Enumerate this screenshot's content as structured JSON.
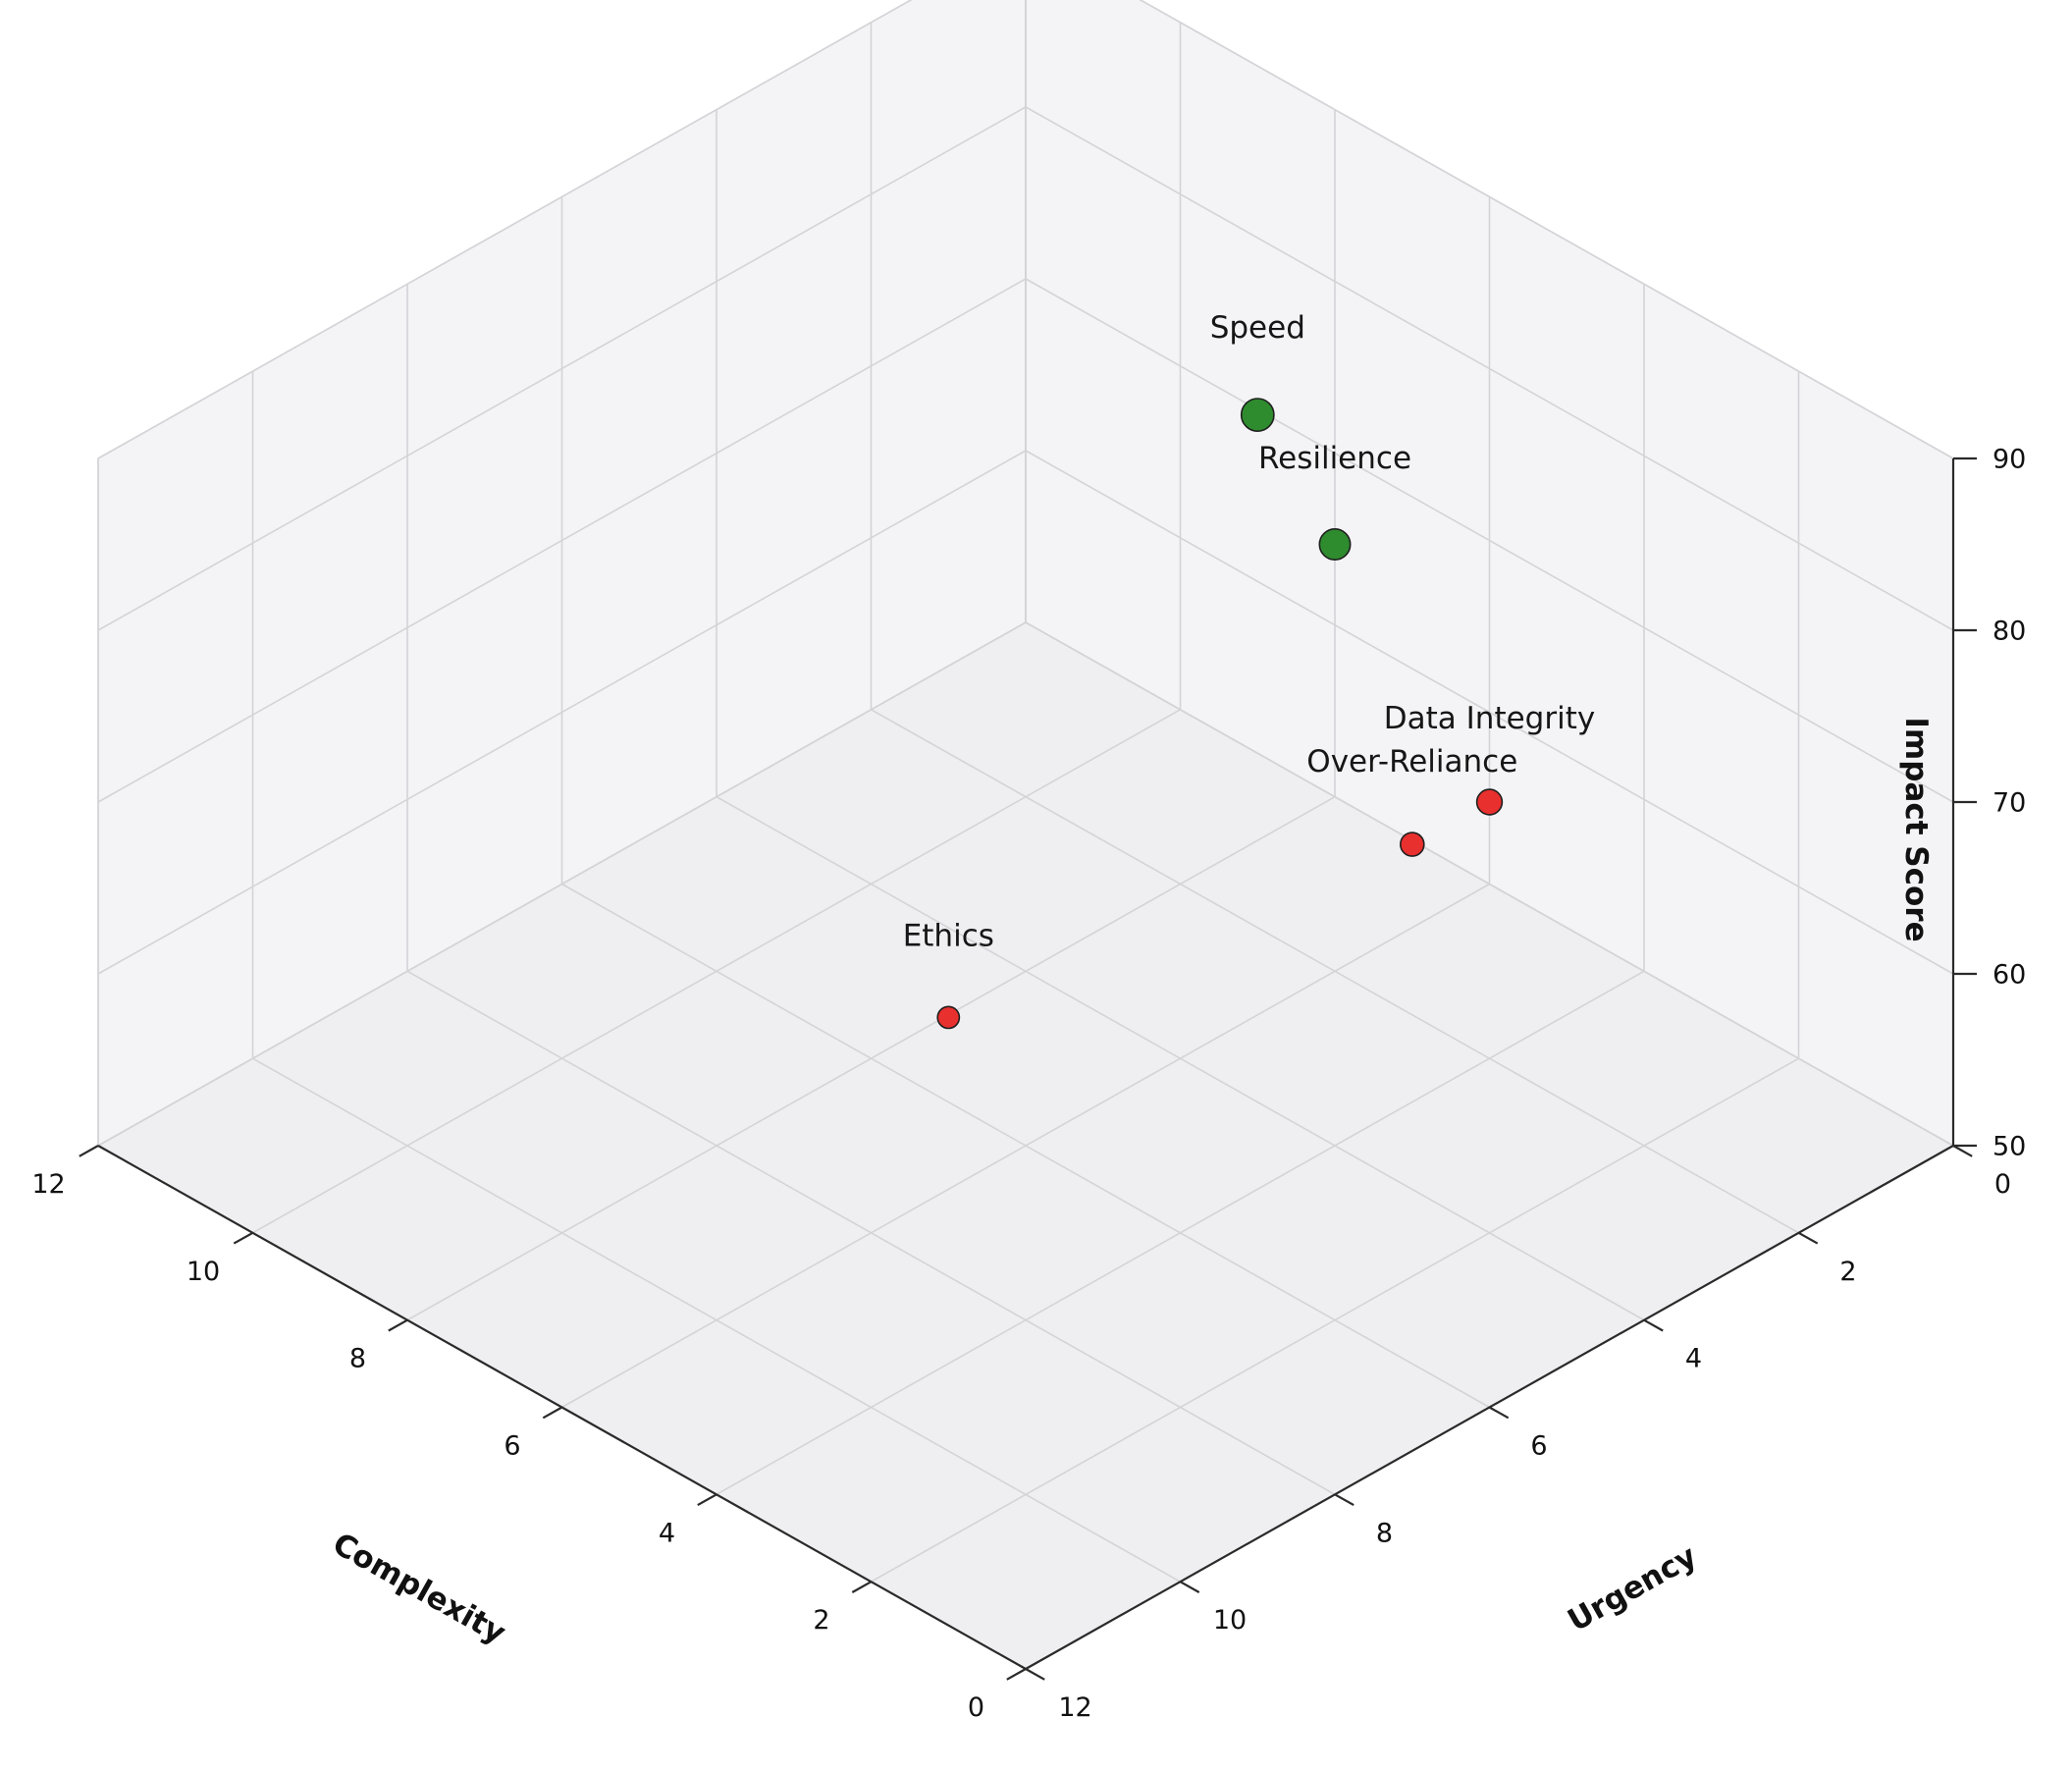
{
  "page": {
    "background": "#ffffff"
  },
  "chart_data": {
    "type": "scatter",
    "subtype": "scatter3d",
    "title": "",
    "axes": {
      "complexity": {
        "label": "Complexity",
        "min": 0,
        "max": 12,
        "ticks": [
          0,
          2,
          4,
          6,
          8,
          10,
          12
        ]
      },
      "urgency": {
        "label": "Urgency",
        "min": 0,
        "max": 12,
        "ticks": [
          0,
          2,
          4,
          6,
          8,
          10,
          12
        ]
      },
      "impact": {
        "label": "Impact Score",
        "min": 50,
        "max": 90,
        "ticks": [
          50,
          60,
          70,
          80,
          90
        ]
      }
    },
    "grid": true,
    "legend": "none",
    "points": [
      {
        "name": "Speed",
        "complexity": 5,
        "urgency": 4,
        "impact": 90,
        "category": "positive"
      },
      {
        "name": "Resilience",
        "complexity": 4,
        "urgency": 4,
        "impact": 85,
        "category": "positive"
      },
      {
        "name": "Data Integrity",
        "complexity": 3,
        "urgency": 3,
        "impact": 70,
        "category": "risk"
      },
      {
        "name": "Over-Reliance",
        "complexity": 4,
        "urgency": 3,
        "impact": 65,
        "category": "risk"
      },
      {
        "name": "Ethics",
        "complexity": 6,
        "urgency": 7,
        "impact": 60,
        "category": "risk"
      }
    ],
    "category_colors": {
      "positive": "#2e8b2e",
      "risk": "#e8302e"
    },
    "point_edge_color": "#1f1f1f",
    "pane_colors": {
      "floor": "#efeff2",
      "left_wall": "#f4f4f6",
      "right_wall": "#f4f4f6"
    },
    "grid_color": "#d4d4d8",
    "axis_line_color": "#2a2a2a"
  }
}
